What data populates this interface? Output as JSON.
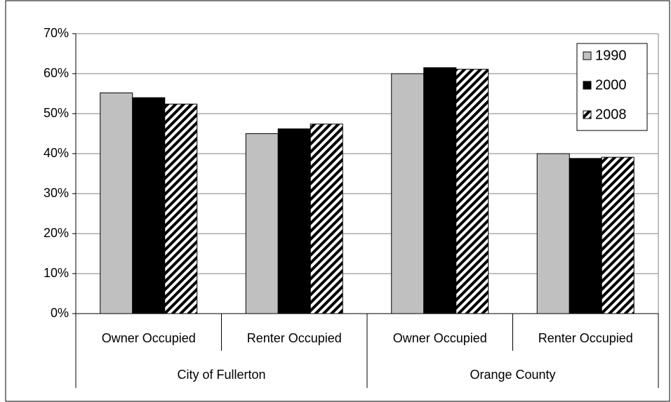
{
  "chart_data": {
    "type": "bar",
    "categories": [
      "Owner Occupied",
      "Renter Occupied",
      "Owner Occupied",
      "Renter Occupied"
    ],
    "category_groups": [
      "City of Fullerton",
      "Orange County"
    ],
    "series": [
      {
        "name": "1990",
        "color": "#c0c0c0",
        "values": [
          55.2,
          45,
          60,
          40
        ]
      },
      {
        "name": "2000",
        "color": "#000000",
        "values": [
          54,
          46.2,
          61.5,
          38.8
        ]
      },
      {
        "name": "2008",
        "color": "#000000",
        "pattern": "diagonal-stripes",
        "values": [
          52.4,
          47.4,
          61.1,
          39.1
        ]
      }
    ],
    "ylim": [
      0,
      70
    ],
    "yticks": [
      {
        "value": 0,
        "label": "0%"
      },
      {
        "value": 10,
        "label": "10%"
      },
      {
        "value": 20,
        "label": "20%"
      },
      {
        "value": 30,
        "label": "30%"
      },
      {
        "value": 40,
        "label": "40%"
      },
      {
        "value": 50,
        "label": "50%"
      },
      {
        "value": 60,
        "label": "60%"
      },
      {
        "value": 70,
        "label": "70%"
      }
    ],
    "grid": true,
    "legend": "top-right"
  }
}
